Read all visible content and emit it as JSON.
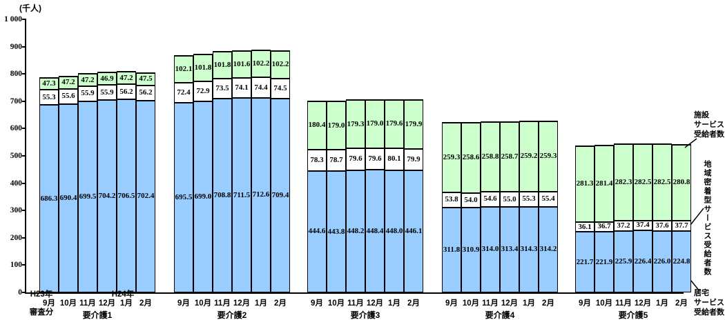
{
  "chart_data": {
    "type": "bar",
    "stacked": true,
    "ylabel": "(千人)",
    "ylim": [
      0,
      1000
    ],
    "grid": false,
    "y_axis": {
      "tick_values": [
        1000,
        900,
        800,
        700,
        600,
        500,
        400,
        300,
        200,
        100,
        0
      ],
      "tick_labels": [
        "1 000",
        "900",
        "800",
        "700",
        "600",
        "500",
        "400",
        "300",
        "200",
        "100",
        "0"
      ]
    },
    "series_keys": [
      "home",
      "community",
      "facility"
    ],
    "series_names": {
      "home": "居宅サービス受給者数",
      "community": "地域密着型サービス受給者数",
      "facility": "施設サービス受給者数"
    },
    "colors": {
      "home": "#99CCFF",
      "community": "#FFFFFF",
      "facility": "#CCFFCC",
      "border": "#000000"
    },
    "x_axis": {
      "era1": "H23年",
      "era2": "H24年",
      "note": "審査分"
    },
    "groups": [
      {
        "label": "要介護1",
        "months": [
          "9月",
          "10月",
          "11月",
          "12月",
          "1月",
          "2月"
        ],
        "home": [
          "686.3",
          "690.4",
          "699.5",
          "704.2",
          "706.5",
          "702.4"
        ],
        "community": [
          "55.3",
          "55.6",
          "55.9",
          "55.9",
          "56.2",
          "56.2"
        ],
        "facility": [
          "47.3",
          "47.2",
          "47.2",
          "46.9",
          "47.2",
          "47.5"
        ]
      },
      {
        "label": "要介護2",
        "months": [
          "9月",
          "10月",
          "11月",
          "12月",
          "1月",
          "2月"
        ],
        "home": [
          "695.5",
          "699.0",
          "708.8",
          "711.5",
          "712.6",
          "709.4"
        ],
        "community": [
          "72.4",
          "72.9",
          "73.5",
          "74.1",
          "74.4",
          "74.5"
        ],
        "facility": [
          "102.1",
          "101.8",
          "101.8",
          "101.6",
          "102.2",
          "102.2"
        ]
      },
      {
        "label": "要介護3",
        "months": [
          "9月",
          "10月",
          "11月",
          "12月",
          "1月",
          "2月"
        ],
        "home": [
          "444.6",
          "443.8",
          "448.2",
          "448.4",
          "448.0",
          "446.1"
        ],
        "community": [
          "78.3",
          "78.7",
          "79.6",
          "79.6",
          "80.1",
          "79.9"
        ],
        "facility": [
          "180.4",
          "179.0",
          "179.3",
          "179.0",
          "179.6",
          "179.9"
        ]
      },
      {
        "label": "要介護4",
        "months": [
          "9月",
          "10月",
          "11月",
          "12月",
          "1月",
          "2月"
        ],
        "home": [
          "311.8",
          "310.9",
          "314.0",
          "313.4",
          "314.3",
          "314.2"
        ],
        "community": [
          "53.8",
          "54.0",
          "54.6",
          "55.0",
          "55.3",
          "55.4"
        ],
        "facility": [
          "259.3",
          "258.6",
          "258.8",
          "258.7",
          "259.2",
          "259.3"
        ]
      },
      {
        "label": "要介護5",
        "months": [
          "9月",
          "10月",
          "11月",
          "12月",
          "1月",
          "2月"
        ],
        "home": [
          "221.7",
          "221.9",
          "225.9",
          "226.4",
          "226.0",
          "224.8"
        ],
        "community": [
          "36.1",
          "36.7",
          "37.2",
          "37.4",
          "37.6",
          "37.7"
        ],
        "facility": [
          "281.3",
          "281.4",
          "282.3",
          "282.5",
          "282.5",
          "280.8"
        ]
      }
    ]
  },
  "legend": {
    "facility_lines": [
      "施設",
      "サービス",
      "受給者数"
    ],
    "community_vertical": "地域密着型サービス受給者数",
    "home_lines": [
      "居宅",
      "サービス",
      "受給者数"
    ]
  }
}
